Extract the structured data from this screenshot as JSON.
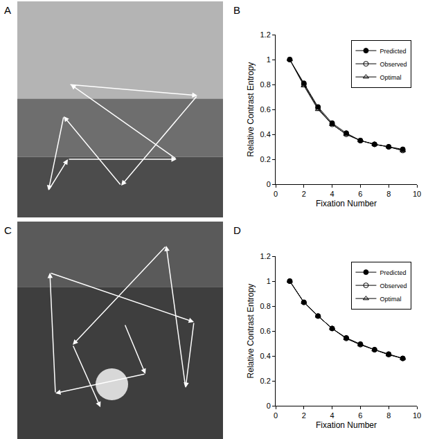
{
  "chart_data": [
    {
      "type": "line",
      "panel_label": "B",
      "x_label": "Fixation Number",
      "y_label": "Relative Contrast Entropy",
      "x": [
        1,
        2,
        3,
        4,
        5,
        6,
        7,
        8,
        9
      ],
      "series": [
        {
          "name": "Predicted",
          "color": "#000000",
          "marker": "circle",
          "line_style": "solid",
          "values": [
            1.0,
            0.81,
            0.62,
            0.49,
            0.41,
            0.35,
            0.32,
            0.3,
            0.28
          ]
        },
        {
          "name": "Observed",
          "color": "#000000",
          "marker": "circle-open",
          "line_style": "solid",
          "values": [
            1.0,
            0.8,
            0.61,
            0.48,
            0.4,
            0.35,
            0.32,
            0.3,
            0.27
          ]
        },
        {
          "name": "Optimal",
          "color": "#000000",
          "marker": "triangle-up-open",
          "line_style": "solid",
          "values": [
            1.0,
            0.79,
            0.6,
            0.48,
            0.4,
            0.35,
            0.32,
            0.3,
            0.27
          ]
        }
      ],
      "xlim": [
        0,
        10
      ],
      "xticks": [
        0,
        2,
        4,
        6,
        8,
        10
      ],
      "ylim": [
        0,
        1.2
      ],
      "yticks": [
        0,
        0.2,
        0.4,
        0.6,
        0.8,
        1,
        1.2
      ],
      "grid": false,
      "legend": "upper right"
    },
    {
      "type": "line",
      "panel_label": "D",
      "x_label": "Fixation Number",
      "y_label": "Relative Contrast Entropy",
      "x": [
        1,
        2,
        3,
        4,
        5,
        6,
        7,
        8,
        9
      ],
      "series": [
        {
          "name": "Predicted",
          "color": "#000000",
          "marker": "circle",
          "line_style": "solid",
          "values": [
            1.0,
            0.83,
            0.72,
            0.62,
            0.545,
            0.495,
            0.45,
            0.415,
            0.38
          ]
        },
        {
          "name": "Observed",
          "color": "#000000",
          "marker": "circle-open",
          "line_style": "solid",
          "values": [
            1.0,
            0.83,
            0.72,
            0.62,
            0.54,
            0.49,
            0.45,
            0.41,
            0.38
          ]
        },
        {
          "name": "Optimal",
          "color": "#000000",
          "marker": "triangle-up-open",
          "line_style": "solid",
          "values": [
            1.0,
            0.83,
            0.72,
            0.62,
            0.54,
            0.49,
            0.45,
            0.41,
            0.38
          ]
        }
      ],
      "xlim": [
        0,
        10
      ],
      "xticks": [
        0,
        2,
        4,
        6,
        8,
        10
      ],
      "ylim": [
        0,
        1.2
      ],
      "yticks": [
        0,
        0.2,
        0.4,
        0.6,
        0.8,
        1,
        1.2
      ],
      "grid": false,
      "legend": "upper right"
    }
  ],
  "images": [
    {
      "panel_label": "A"
    },
    {
      "panel_label": "C"
    }
  ]
}
